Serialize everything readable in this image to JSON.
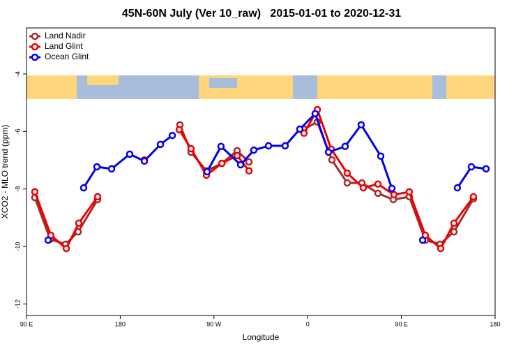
{
  "chart_data": {
    "type": "line",
    "title": "45N-60N July (Ver 10_raw)   2015-01-01 to 2020-12-31",
    "xlabel": "Longitude",
    "ylabel": "XCO2 - MLO trend (ppm)",
    "xlim": [
      90,
      540
    ],
    "ylim": [
      -12.4,
      -2.4
    ],
    "xticks": [
      {
        "value": 90,
        "label": "90 E"
      },
      180,
      {
        "value": 270,
        "label": "90 W"
      },
      {
        "value": 360,
        "label": "0"
      },
      {
        "value": 450,
        "label": "90 E"
      },
      {
        "value": 540,
        "label": "180"
      }
    ],
    "yticks": [
      -12,
      -10,
      -8,
      -6,
      -4
    ],
    "legend": "top-left",
    "series": [
      {
        "name": "Land Nadir",
        "color": "#a52a2a",
        "x": [
          98,
          112.8,
          127.5,
          139.6,
          158.3,
          null,
          237.3,
          248,
          262.8,
          277.6,
          292.3,
          303.6,
          null,
          356.5,
          369.3,
          383.3,
          398,
          412.1,
          427.5,
          442.2,
          457.6,
          473,
          487.1,
          500.5,
          519.2
        ],
        "values": [
          -8.3,
          -9.75,
          -9.92,
          -9.49,
          -8.37,
          null,
          -5.77,
          -6.72,
          -7.37,
          -7.11,
          -6.67,
          -7.06,
          null,
          -5.92,
          -5.67,
          -6.99,
          -7.79,
          -7.79,
          -8.15,
          -8.37,
          -8.27,
          -9.78,
          -9.92,
          -9.49,
          -8.34
        ]
      },
      {
        "name": "Land Glint",
        "color": "#ee0000",
        "x": [
          98,
          113.4,
          128.2,
          140.2,
          158.3,
          null,
          203.2,
          null,
          236.7,
          248,
          262.8,
          277.6,
          292.3,
          303.7,
          null,
          356.5,
          369.3,
          382.7,
          398,
          413.4,
          427.5,
          442.9,
          457.6,
          473,
          487.8,
          500.5,
          519.2
        ],
        "values": [
          -8.1,
          -9.61,
          -10.07,
          -9.19,
          -8.27,
          null,
          -6.99,
          null,
          -5.94,
          -6.6,
          -7.52,
          -7.11,
          -6.84,
          -7.37,
          null,
          -6.06,
          -5.24,
          -6.62,
          -7.45,
          -7.96,
          -7.83,
          -8.2,
          -8.1,
          -9.61,
          -10.07,
          -9.19,
          -8.27
        ]
      },
      {
        "name": "Ocean Glint",
        "color": "#0000ee",
        "x": [
          110.8,
          null,
          144.9,
          157.6,
          171.7,
          189.1,
          203.2,
          218.6,
          230,
          null,
          263.4,
          276.8,
          295.6,
          308.3,
          322.4,
          338.4,
          352.5,
          367.2,
          380,
          396,
          411.4,
          430.2,
          440.9,
          null,
          470.4,
          null,
          503.8,
          517.2,
          531.3
        ],
        "values": [
          -9.78,
          null,
          -7.96,
          -7.23,
          -7.3,
          -6.79,
          -7.03,
          -6.45,
          -6.14,
          null,
          -7.4,
          -6.52,
          -7.16,
          -6.65,
          -6.5,
          -6.5,
          -5.92,
          -5.38,
          -6.72,
          -6.52,
          -5.77,
          -6.86,
          -7.98,
          null,
          -9.78,
          null,
          -7.96,
          -7.23,
          -7.3
        ]
      }
    ]
  }
}
